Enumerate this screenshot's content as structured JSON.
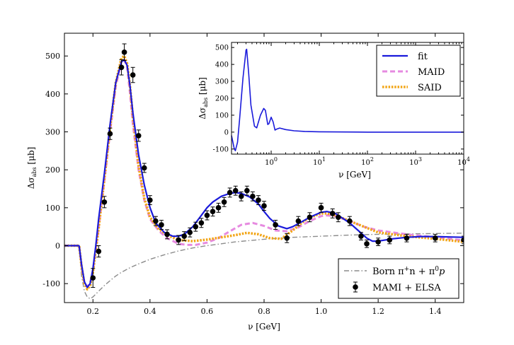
{
  "chart_data": [
    {
      "type": "line",
      "role": "main",
      "xlabel": "ν [GeV]",
      "ylabel_main": "Δσ",
      "ylabel_sub": "abs",
      "ylabel_unit": " [μb]",
      "xlim": [
        0.1,
        1.5
      ],
      "ylim": [
        -150,
        560
      ],
      "xticks": [
        0.2,
        0.4,
        0.6,
        0.8,
        1.0,
        1.2,
        1.4
      ],
      "xtick_labels": [
        "0.2",
        "0.4",
        "0.6",
        "0.8",
        "1.0",
        "1.2",
        "1.4"
      ],
      "yticks": [
        -100,
        0,
        100,
        200,
        300,
        400,
        500
      ],
      "ytick_labels": [
        "-100",
        "0",
        "100",
        "200",
        "300",
        "400",
        "500"
      ],
      "colors": {
        "fit": "#1a1adb",
        "maid": "#e68ae0",
        "said": "#f2a516",
        "born": "#8c8c8c",
        "data": "#000000"
      },
      "series": [
        {
          "name": "fit",
          "style": "solid",
          "x": [
            0.1,
            0.151,
            0.152,
            0.16,
            0.17,
            0.18,
            0.19,
            0.2,
            0.21,
            0.22,
            0.24,
            0.26,
            0.28,
            0.3,
            0.31,
            0.32,
            0.33,
            0.34,
            0.36,
            0.38,
            0.4,
            0.42,
            0.45,
            0.48,
            0.5,
            0.52,
            0.55,
            0.58,
            0.6,
            0.62,
            0.65,
            0.68,
            0.7,
            0.72,
            0.75,
            0.78,
            0.8,
            0.82,
            0.85,
            0.88,
            0.9,
            0.93,
            0.96,
            1.0,
            1.02,
            1.05,
            1.08,
            1.1,
            1.13,
            1.16,
            1.18,
            1.2,
            1.25,
            1.3,
            1.35,
            1.4,
            1.45,
            1.5
          ],
          "y": [
            0,
            0,
            -2,
            -50,
            -95,
            -110,
            -100,
            -60,
            0,
            70,
            190,
            320,
            430,
            485,
            490,
            475,
            420,
            350,
            240,
            160,
            100,
            60,
            35,
            25,
            25,
            30,
            50,
            80,
            100,
            115,
            130,
            138,
            140,
            138,
            128,
            110,
            90,
            72,
            52,
            45,
            50,
            62,
            75,
            88,
            90,
            85,
            70,
            60,
            40,
            20,
            12,
            12,
            18,
            22,
            24,
            24,
            23,
            22
          ]
        },
        {
          "name": "MAID",
          "style": "dashed",
          "x": [
            0.1,
            0.151,
            0.152,
            0.16,
            0.17,
            0.18,
            0.19,
            0.2,
            0.22,
            0.24,
            0.26,
            0.28,
            0.3,
            0.31,
            0.32,
            0.33,
            0.34,
            0.36,
            0.38,
            0.4,
            0.43,
            0.46,
            0.5,
            0.53,
            0.56,
            0.6,
            0.64,
            0.68,
            0.72,
            0.76,
            0.8,
            0.84,
            0.88,
            0.92,
            0.96,
            1.0,
            1.02,
            1.05,
            1.1,
            1.15,
            1.2,
            1.3,
            1.4,
            1.5
          ],
          "y": [
            0,
            0,
            -2,
            -55,
            -98,
            -108,
            -98,
            -65,
            45,
            170,
            300,
            420,
            485,
            490,
            470,
            400,
            320,
            200,
            120,
            70,
            40,
            20,
            5,
            2,
            2,
            8,
            20,
            38,
            55,
            60,
            52,
            40,
            38,
            48,
            65,
            78,
            80,
            78,
            65,
            50,
            40,
            30,
            22,
            14
          ]
        },
        {
          "name": "SAID",
          "style": "dotted",
          "x": [
            0.1,
            0.151,
            0.152,
            0.16,
            0.17,
            0.18,
            0.19,
            0.2,
            0.22,
            0.24,
            0.26,
            0.28,
            0.3,
            0.31,
            0.32,
            0.33,
            0.34,
            0.36,
            0.38,
            0.4,
            0.43,
            0.46,
            0.5,
            0.55,
            0.6,
            0.65,
            0.7,
            0.74,
            0.78,
            0.82,
            0.86,
            0.9,
            0.94,
            0.98,
            1.0,
            1.02,
            1.05,
            1.1,
            1.15,
            1.2,
            1.3,
            1.4,
            1.5
          ],
          "y": [
            0,
            0,
            -2,
            -55,
            -100,
            -115,
            -105,
            -70,
            45,
            175,
            310,
            430,
            495,
            500,
            480,
            420,
            340,
            210,
            125,
            75,
            45,
            28,
            15,
            12,
            16,
            22,
            28,
            34,
            30,
            20,
            18,
            40,
            65,
            80,
            85,
            85,
            80,
            65,
            50,
            35,
            25,
            18,
            10
          ]
        },
        {
          "name": "Born π⁺n + π⁰p",
          "style": "dashdot",
          "x": [
            0.1,
            0.151,
            0.152,
            0.16,
            0.17,
            0.18,
            0.19,
            0.2,
            0.22,
            0.24,
            0.26,
            0.28,
            0.3,
            0.33,
            0.36,
            0.4,
            0.45,
            0.5,
            0.55,
            0.6,
            0.65,
            0.7,
            0.8,
            0.9,
            1.0,
            1.1,
            1.2,
            1.3,
            1.4,
            1.5
          ],
          "y": [
            0,
            0,
            -2,
            -80,
            -120,
            -135,
            -140,
            -135,
            -120,
            -105,
            -92,
            -80,
            -70,
            -58,
            -48,
            -36,
            -24,
            -14,
            -6,
            0,
            5,
            10,
            17,
            22,
            25,
            28,
            30,
            31,
            32,
            33
          ]
        }
      ],
      "data_points": {
        "name": "MAMI + ELSA",
        "x": [
          0.2,
          0.22,
          0.24,
          0.26,
          0.3,
          0.31,
          0.34,
          0.36,
          0.38,
          0.4,
          0.42,
          0.44,
          0.46,
          0.5,
          0.52,
          0.54,
          0.56,
          0.58,
          0.6,
          0.62,
          0.64,
          0.66,
          0.68,
          0.7,
          0.72,
          0.74,
          0.76,
          0.78,
          0.8,
          0.84,
          0.88,
          0.92,
          0.96,
          1.0,
          1.04,
          1.06,
          1.1,
          1.14,
          1.16,
          1.2,
          1.24,
          1.3,
          1.4,
          1.5
        ],
        "y": [
          -85,
          -15,
          115,
          295,
          470,
          510,
          450,
          290,
          205,
          120,
          65,
          55,
          30,
          15,
          25,
          35,
          50,
          60,
          80,
          90,
          100,
          115,
          140,
          145,
          130,
          145,
          130,
          120,
          105,
          55,
          20,
          65,
          75,
          100,
          85,
          75,
          65,
          25,
          5,
          10,
          15,
          20,
          20,
          15
        ],
        "yerr": [
          25,
          15,
          15,
          15,
          20,
          22,
          20,
          15,
          12,
          12,
          12,
          12,
          12,
          12,
          12,
          12,
          12,
          12,
          12,
          12,
          12,
          12,
          12,
          12,
          12,
          12,
          12,
          12,
          12,
          12,
          12,
          12,
          12,
          12,
          12,
          12,
          12,
          10,
          10,
          10,
          10,
          10,
          10,
          10
        ]
      },
      "legend": {
        "placement": "lower-right",
        "entries": [
          {
            "label": "Born π",
            "sup1": "+",
            "mid1": "n + π",
            "sup2": "0",
            "tail": "p",
            "series": "born"
          },
          {
            "label": "MAMI + ELSA",
            "series": "data"
          }
        ]
      }
    },
    {
      "type": "line",
      "role": "inset",
      "xlabel": "ν [GeV]",
      "ylabel_main": "Δσ",
      "ylabel_sub": "abs",
      "ylabel_unit": " [μb]",
      "xscale": "log",
      "xlim": [
        0.15,
        10000
      ],
      "ylim": [
        -130,
        530
      ],
      "yticks": [
        -100,
        0,
        100,
        200,
        300,
        400,
        500
      ],
      "ytick_labels": [
        "-100",
        "0",
        "100",
        "200",
        "300",
        "400",
        "500"
      ],
      "xticks": [
        {
          "value": 1,
          "base": "10",
          "exp": "0"
        },
        {
          "value": 10,
          "base": "10",
          "exp": "1"
        },
        {
          "value": 100,
          "base": "10",
          "exp": "2"
        },
        {
          "value": 1000,
          "base": "10",
          "exp": "3"
        },
        {
          "value": 10000,
          "base": "10",
          "exp": "4"
        }
      ],
      "series": [
        {
          "name": "fit",
          "x": [
            0.15,
            0.17,
            0.18,
            0.2,
            0.22,
            0.26,
            0.3,
            0.31,
            0.34,
            0.38,
            0.45,
            0.5,
            0.6,
            0.7,
            0.76,
            0.85,
            0.9,
            1.0,
            1.1,
            1.2,
            1.3,
            1.5,
            2,
            3,
            5,
            10,
            100,
            1000,
            10000
          ],
          "y": [
            -20,
            -95,
            -110,
            -60,
            70,
            320,
            485,
            490,
            350,
            160,
            35,
            25,
            100,
            140,
            128,
            45,
            50,
            88,
            60,
            12,
            18,
            24,
            15,
            8,
            4,
            2,
            0,
            0,
            0
          ]
        }
      ],
      "legend": {
        "placement": "top-right",
        "entries": [
          {
            "label": "fit",
            "series": "fit"
          },
          {
            "label": "MAID",
            "series": "maid"
          },
          {
            "label": "SAID",
            "series": "said"
          }
        ]
      }
    }
  ]
}
